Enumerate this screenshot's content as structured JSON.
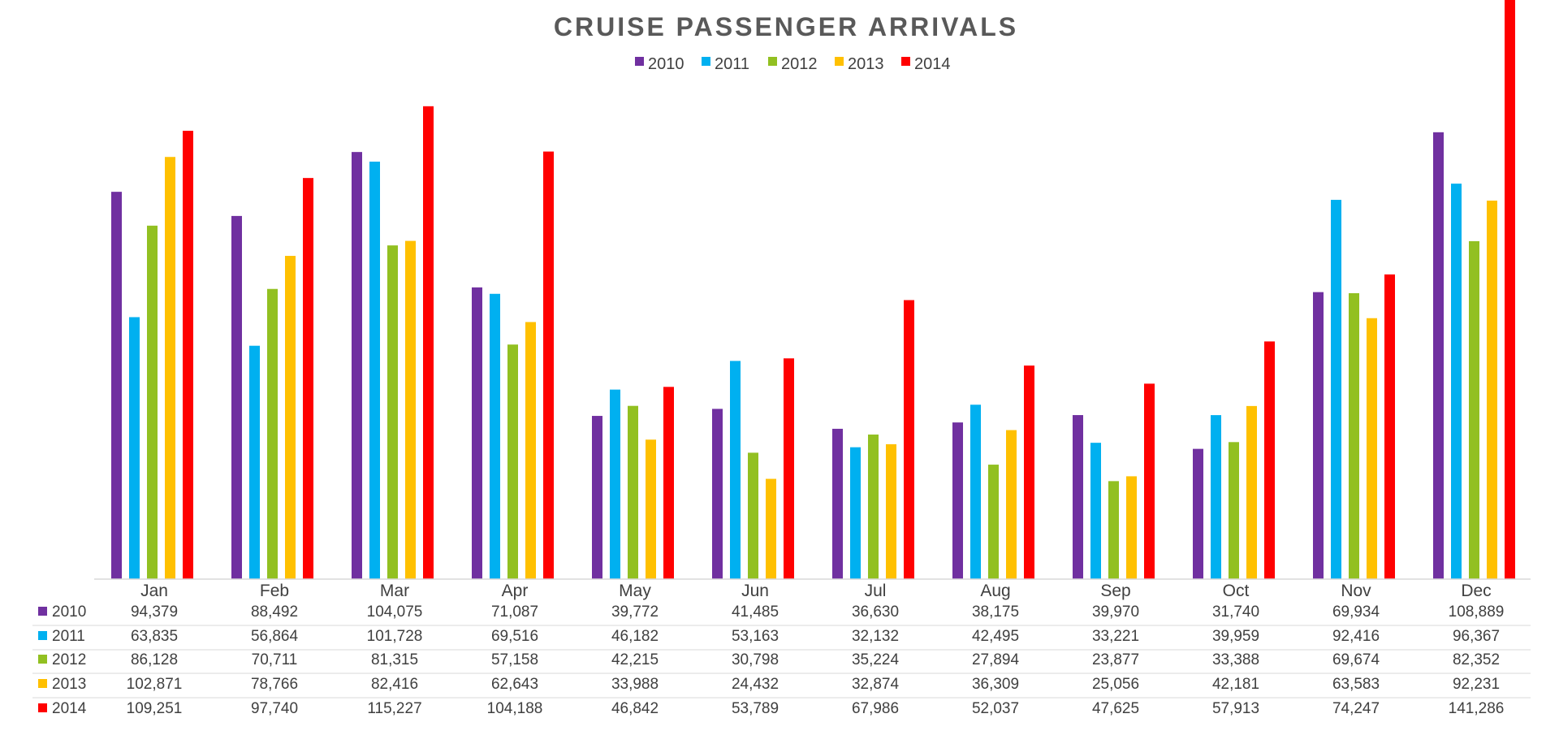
{
  "chart_data": {
    "type": "bar",
    "title": "CRUISE PASSENGER ARRIVALS",
    "xlabel": "",
    "ylabel": "",
    "categories": [
      "Jan",
      "Feb",
      "Mar",
      "Apr",
      "May",
      "Jun",
      "Jul",
      "Aug",
      "Sep",
      "Oct",
      "Nov",
      "Dec"
    ],
    "ylim": [
      0,
      145000
    ],
    "grid": false,
    "legend_position": "top",
    "data_table": true,
    "series": [
      {
        "name": "2010",
        "color": "#7030A0",
        "values": [
          94379,
          88492,
          104075,
          71087,
          39772,
          41485,
          36630,
          38175,
          39970,
          31740,
          69934,
          108889
        ]
      },
      {
        "name": "2011",
        "color": "#00B0F0",
        "values": [
          63835,
          56864,
          101728,
          69516,
          46182,
          53163,
          32132,
          42495,
          33221,
          39959,
          92416,
          96367
        ]
      },
      {
        "name": "2012",
        "color": "#92C021",
        "values": [
          86128,
          70711,
          81315,
          57158,
          42215,
          30798,
          35224,
          27894,
          23877,
          33388,
          69674,
          82352
        ]
      },
      {
        "name": "2013",
        "color": "#FFC000",
        "values": [
          102871,
          78766,
          82416,
          62643,
          33988,
          24432,
          32874,
          36309,
          25056,
          42181,
          63583,
          92231
        ]
      },
      {
        "name": "2014",
        "color": "#FF0000",
        "values": [
          109251,
          97740,
          115227,
          104188,
          46842,
          53789,
          67986,
          52037,
          47625,
          57913,
          74247,
          141286
        ]
      }
    ],
    "table_rows": [
      {
        "label": "2010",
        "cells": [
          "94,379",
          "88,492",
          "104,075",
          "71,087",
          "39,772",
          "41,485",
          "36,630",
          "38,175",
          "39,970",
          "31,740",
          "69,934",
          "108,889"
        ]
      },
      {
        "label": "2011",
        "cells": [
          "63,835",
          "56,864",
          "101,728",
          "69,516",
          "46,182",
          "53,163",
          "32,132",
          "42,495",
          "33,221",
          "39,959",
          "92,416",
          "96,367"
        ]
      },
      {
        "label": "2012",
        "cells": [
          "86,128",
          "70,711",
          "81,315",
          "57,158",
          "42,215",
          "30,798",
          "35,224",
          "27,894",
          "23,877",
          "33,388",
          "69,674",
          "82,352"
        ]
      },
      {
        "label": "2013",
        "cells": [
          "102,871",
          "78,766",
          "82,416",
          "62,643",
          "33,988",
          "24,432",
          "32,874",
          "36,309",
          "25,056",
          "42,181",
          "63,583",
          "92,231"
        ]
      },
      {
        "label": "2014",
        "cells": [
          "109,251",
          "97,740",
          "115,227",
          "104,188",
          "46,842",
          "53,789",
          "67,986",
          "52,037",
          "47,625",
          "57,913",
          "74,247",
          "141,286"
        ]
      }
    ]
  }
}
